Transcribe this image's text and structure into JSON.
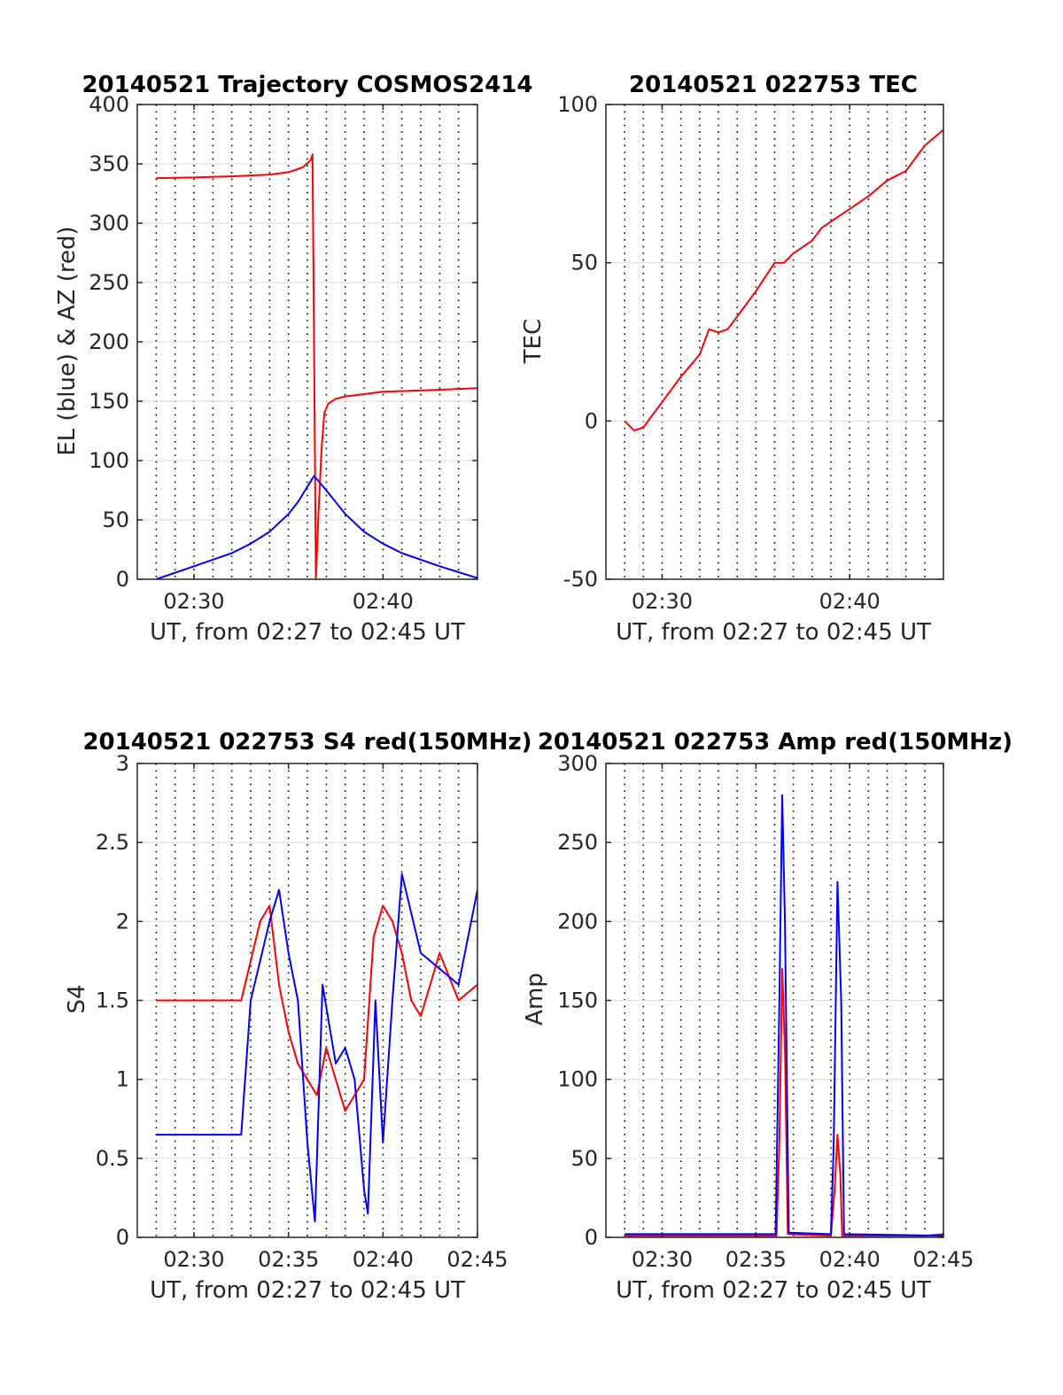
{
  "figure": {
    "colors": {
      "el": "#0000ff",
      "az": "#ff0000",
      "grid": "#000000",
      "axis": "#262626"
    }
  },
  "chart_data": [
    {
      "type": "line",
      "title": "20140521 Trajectory COSMOS2414",
      "xlabel": "UT, from 02:27 to 02:45 UT",
      "ylabel": "EL (blue) & AZ (red)",
      "xlim": [
        "02:27",
        "02:45"
      ],
      "ylim": [
        0,
        400
      ],
      "xticks": [
        "02:30",
        "02:40"
      ],
      "yticks": [
        0,
        50,
        100,
        150,
        200,
        250,
        300,
        350,
        400
      ],
      "grid": true,
      "series": [
        {
          "color": "#ff0000",
          "x": [
            "02:28",
            "02:30",
            "02:32",
            "02:34",
            "02:35",
            "02:35.75",
            "02:36.17",
            "02:36.27",
            "02:36.35",
            "02:36.45",
            "02:36.6",
            "02:36.75",
            "02:36.9",
            "02:37.1",
            "02:37.5",
            "02:38",
            "02:39",
            "02:40",
            "02:42",
            "02:45"
          ],
          "values": [
            338,
            338.5,
            339.5,
            341,
            343,
            347,
            353,
            358,
            200,
            0,
            60,
            110,
            140,
            148,
            152,
            154,
            156,
            158,
            159,
            161
          ]
        },
        {
          "color": "#0000ff",
          "x": [
            "02:28",
            "02:30",
            "02:32",
            "02:33",
            "02:34",
            "02:35",
            "02:35.5",
            "02:36",
            "02:36.35",
            "02:37",
            "02:37.5",
            "02:38",
            "02:39",
            "02:40",
            "02:41",
            "02:43",
            "02:45"
          ],
          "values": [
            0,
            11,
            22,
            30,
            40,
            55,
            65,
            78,
            87,
            75,
            65,
            55,
            40,
            30,
            22,
            11,
            1
          ]
        }
      ]
    },
    {
      "type": "line",
      "title": "20140521 022753 TEC",
      "xlabel": "UT, from 02:27 to 02:45 UT",
      "ylabel": "TEC",
      "xlim": [
        "02:27",
        "02:45"
      ],
      "ylim": [
        -50,
        100
      ],
      "xticks": [
        "02:30",
        "02:40"
      ],
      "yticks": [
        -50,
        0,
        50,
        100
      ],
      "grid": true,
      "series": [
        {
          "color": "#ff0000",
          "x": [
            "02:28",
            "02:28.5",
            "02:29",
            "02:30",
            "02:31",
            "02:32",
            "02:32.5",
            "02:33",
            "02:33.5",
            "02:34",
            "02:35",
            "02:36",
            "02:36.5",
            "02:37",
            "02:38",
            "02:38.5",
            "02:39",
            "02:40",
            "02:41",
            "02:42",
            "02:43",
            "02:44",
            "02:45"
          ],
          "values": [
            0,
            -3,
            -2,
            6,
            14,
            21,
            29,
            28,
            29,
            33,
            41,
            50,
            50,
            53,
            57,
            61,
            63,
            67,
            71,
            76,
            79,
            87,
            92
          ]
        }
      ]
    },
    {
      "type": "line",
      "title": "20140521 022753 S4 red(150MHz)",
      "xlabel": "UT, from 02:27 to 02:45 UT",
      "ylabel": "S4",
      "xlim": [
        "02:27",
        "02:45"
      ],
      "ylim": [
        0,
        3
      ],
      "xticks": [
        "02:30",
        "02:35",
        "02:40",
        "02:45"
      ],
      "yticks": [
        0,
        0.5,
        1,
        1.5,
        2,
        2.5,
        3
      ],
      "grid": true,
      "series": [
        {
          "color": "#ff0000",
          "x": [
            "02:28",
            "02:32.5",
            "02:33.5",
            "02:34",
            "02:34.5",
            "02:35",
            "02:35.5",
            "02:36",
            "02:36.5",
            "02:37",
            "02:37.5",
            "02:38",
            "02:38.5",
            "02:39",
            "02:39.5",
            "02:40",
            "02:40.5",
            "02:41",
            "02:41.5",
            "02:42",
            "02:43",
            "02:44",
            "02:45"
          ],
          "values": [
            1.5,
            1.5,
            2.0,
            2.1,
            1.6,
            1.3,
            1.1,
            1.0,
            0.9,
            1.2,
            1.0,
            0.8,
            0.9,
            1.0,
            1.9,
            2.1,
            2.0,
            1.8,
            1.5,
            1.4,
            1.8,
            1.5,
            1.6
          ]
        },
        {
          "color": "#0000ff",
          "x": [
            "02:28",
            "02:32.5",
            "02:33",
            "02:34",
            "02:34.5",
            "02:35",
            "02:35.5",
            "02:36",
            "02:36.4",
            "02:36.8",
            "02:37.5",
            "02:38",
            "02:38.5",
            "02:39",
            "02:39.2",
            "02:39.6",
            "02:40",
            "02:40.5",
            "02:41",
            "02:42",
            "02:43",
            "02:44",
            "02:45"
          ],
          "values": [
            0.65,
            0.65,
            1.5,
            2.0,
            2.2,
            1.8,
            1.5,
            0.6,
            0.1,
            1.6,
            1.1,
            1.2,
            1.0,
            0.3,
            0.15,
            1.5,
            0.6,
            1.5,
            2.3,
            1.8,
            1.7,
            1.6,
            2.2
          ]
        }
      ]
    },
    {
      "type": "line",
      "title": "20140521 022753 Amp red(150MHz)",
      "xlabel": "UT, from 02:27 to 02:45 UT",
      "ylabel": "Amp",
      "xlim": [
        "02:27",
        "02:45"
      ],
      "ylim": [
        0,
        300
      ],
      "xticks": [
        "02:30",
        "02:35",
        "02:40",
        "02:45"
      ],
      "yticks": [
        0,
        50,
        100,
        150,
        200,
        250,
        300
      ],
      "grid": true,
      "series": [
        {
          "color": "#ff0000",
          "x": [
            "02:28",
            "02:36.1",
            "02:36.25",
            "02:36.4",
            "02:36.55",
            "02:36.7",
            "02:39.0",
            "02:39.2",
            "02:39.35",
            "02:39.5",
            "02:39.6",
            "02:44",
            "02:45"
          ],
          "values": [
            1,
            1,
            60,
            170,
            120,
            2,
            1,
            30,
            65,
            40,
            1,
            1,
            2
          ]
        },
        {
          "color": "#0000ff",
          "x": [
            "02:28",
            "02:36.05",
            "02:36.25",
            "02:36.4",
            "02:36.55",
            "02:36.75",
            "02:39.0",
            "02:39.15",
            "02:39.35",
            "02:39.55",
            "02:39.7",
            "02:45"
          ],
          "values": [
            2,
            2,
            150,
            280,
            200,
            3,
            2,
            60,
            225,
            150,
            2,
            1
          ]
        }
      ]
    }
  ]
}
